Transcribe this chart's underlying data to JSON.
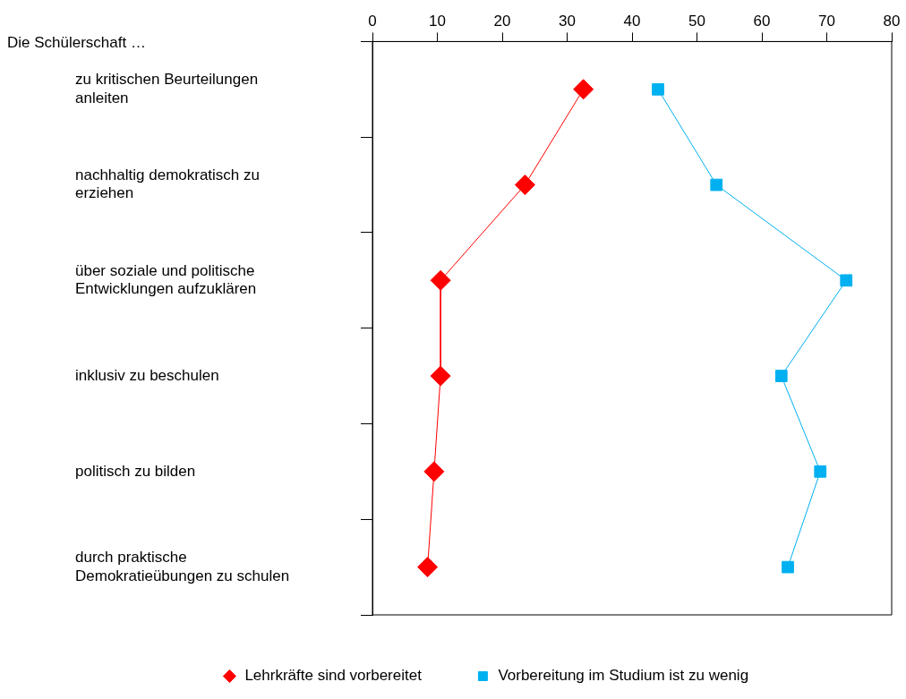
{
  "chart_data": {
    "type": "line",
    "orientation": "horizontal",
    "ylabel": "Die Schülerschaft …",
    "categories": [
      "zu kritischen Beurteilungen anleiten",
      "nachhaltig demokratisch zu erziehen",
      "über soziale und politische Entwicklungen aufzuklären",
      "inklusiv zu beschulen",
      "politisch zu bilden",
      "durch praktische Demokratieübungen zu schulen"
    ],
    "series": [
      {
        "name": "Lehrkräfte sind vorbereitet",
        "color": "#ff0000",
        "marker": "diamond",
        "values": [
          32.5,
          23.5,
          10.5,
          10.5,
          9.5,
          8.5
        ]
      },
      {
        "name": "Vorbereitung im Studium ist zu wenig",
        "color": "#00b0f0",
        "marker": "square",
        "values": [
          44,
          53,
          73,
          63,
          69,
          64
        ]
      }
    ],
    "xlim": [
      0,
      80
    ],
    "xticks": [
      0,
      10,
      20,
      30,
      40,
      50,
      60,
      70,
      80
    ],
    "grid": false,
    "legend": "bottom"
  }
}
